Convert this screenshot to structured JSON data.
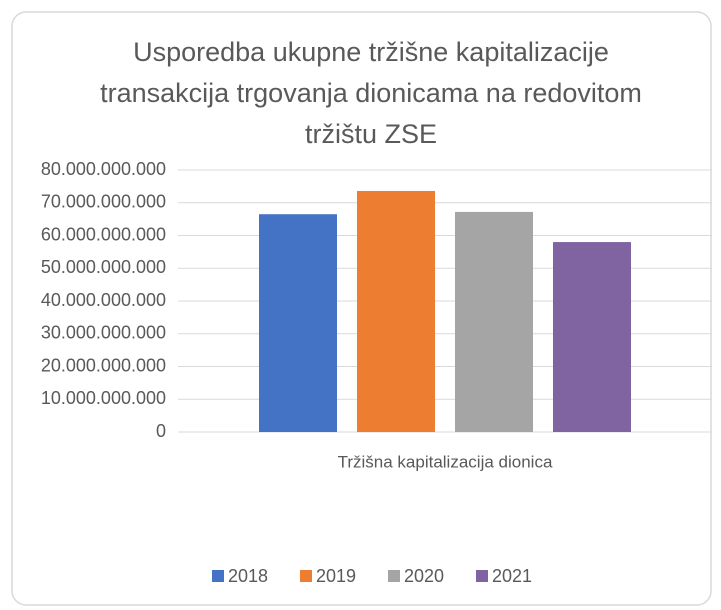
{
  "chart_data": {
    "type": "bar",
    "title": "Usporedba ukupne tržišne kapitalizacije transakcija trgovanja dionicama na redovitom tržištu ZSE",
    "categories": [
      "Tržišna kapitalizacija dionica"
    ],
    "series": [
      {
        "name": "2018",
        "color": "#4472c4",
        "values": [
          66500000000
        ]
      },
      {
        "name": "2019",
        "color": "#ed7d31",
        "values": [
          73600000000
        ]
      },
      {
        "name": "2020",
        "color": "#a5a5a5",
        "values": [
          67200000000
        ]
      },
      {
        "name": "2021",
        "color": "#8064a2",
        "values": [
          58000000000
        ]
      }
    ],
    "ylim": [
      0,
      80000000000
    ],
    "yticks": [
      0,
      {
        "value": 10000000000,
        "label": "10.000.000.000"
      },
      {
        "value": 20000000000,
        "label": "20.000.000.000"
      },
      {
        "value": 30000000000,
        "label": "30.000.000.000"
      },
      {
        "value": 40000000000,
        "label": "40.000.000.000"
      },
      {
        "value": 50000000000,
        "label": "50.000.000.000"
      },
      {
        "value": 60000000000,
        "label": "60.000.000.000"
      },
      {
        "value": 70000000000,
        "label": "70.000.000.000"
      },
      {
        "value": 80000000000,
        "label": "80.000.000.000"
      }
    ],
    "grid": true,
    "legend": "bottom"
  }
}
